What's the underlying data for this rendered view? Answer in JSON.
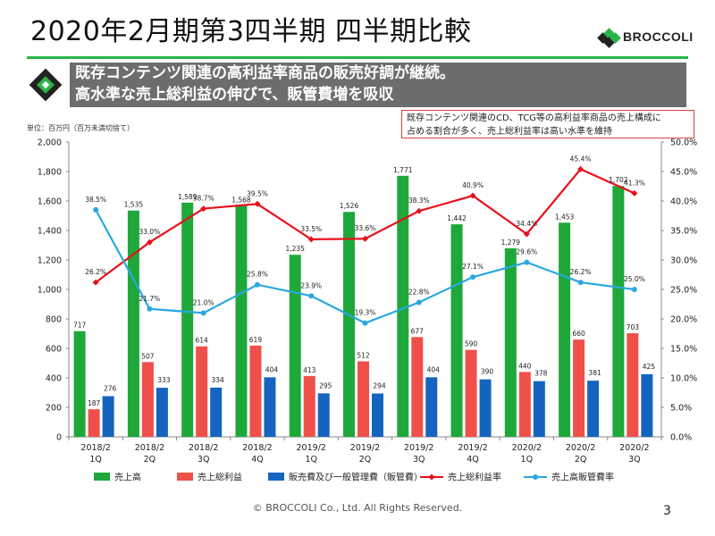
{
  "header": {
    "title": "2020年2月期第3四半期 四半期比較",
    "logo_text": "BROCCOLI"
  },
  "headline": {
    "line1": "既存コンテンツ関連の高利益率商品の販売好調が継続。",
    "line2": "高水準な売上総利益の伸びで、販管費増を吸収"
  },
  "callout": {
    "line1": "既存コンテンツ関連のCD、TCG等の高利益率商品の売上構成に",
    "line2": "占める割合が多く、売上総利益率は高い水準を維持"
  },
  "unit_note": "単位：百万円（百万未満切捨て）",
  "footer": {
    "copyright": "© BROCCOLI Co., Ltd. All Rights Reserved.",
    "page": "3"
  },
  "colors": {
    "sales": "#1fa83a",
    "gross_profit": "#f0504a",
    "sga": "#1565c0",
    "gross_margin": "#e8101c",
    "sga_ratio": "#29a8e0",
    "accent_green": "#2bb34a",
    "headline_bg": "#6d6d6d"
  },
  "chart_data": {
    "type": "bar",
    "categories": [
      [
        "2018/2",
        "1Q"
      ],
      [
        "2018/2",
        "2Q"
      ],
      [
        "2018/2",
        "3Q"
      ],
      [
        "2018/2",
        "4Q"
      ],
      [
        "2019/2",
        "1Q"
      ],
      [
        "2019/2",
        "2Q"
      ],
      [
        "2019/2",
        "3Q"
      ],
      [
        "2019/2",
        "4Q"
      ],
      [
        "2020/2",
        "1Q"
      ],
      [
        "2020/2",
        "2Q"
      ],
      [
        "2020/2",
        "3Q"
      ]
    ],
    "series": [
      {
        "name": "売上高",
        "kind": "bar",
        "axis": "left",
        "values": [
          717,
          1535,
          1589,
          1568,
          1235,
          1526,
          1771,
          1442,
          1279,
          1453,
          1702
        ]
      },
      {
        "name": "売上総利益",
        "kind": "bar",
        "axis": "left",
        "values": [
          187,
          507,
          614,
          619,
          413,
          512,
          677,
          590,
          440,
          660,
          703
        ]
      },
      {
        "name": "販売費及び一般管理費（販管費）",
        "kind": "bar",
        "axis": "left",
        "values": [
          276,
          333,
          334,
          404,
          295,
          294,
          404,
          390,
          378,
          381,
          425
        ]
      },
      {
        "name": "売上総利益率",
        "kind": "line",
        "axis": "right",
        "values": [
          26.2,
          33.0,
          38.7,
          39.5,
          33.5,
          33.6,
          38.3,
          40.9,
          34.4,
          45.4,
          41.3
        ]
      },
      {
        "name": "売上高販管費率",
        "kind": "line",
        "axis": "right",
        "values": [
          38.5,
          21.7,
          21.0,
          25.8,
          23.9,
          19.3,
          22.8,
          27.1,
          29.6,
          26.2,
          25.0
        ]
      }
    ],
    "left_ylim": [
      0,
      2000
    ],
    "left_ticks": [
      "0",
      "200",
      "400",
      "600",
      "800",
      "1,000",
      "1,200",
      "1,400",
      "1,600",
      "1,800",
      "2,000"
    ],
    "right_ylim": [
      0,
      50
    ],
    "right_ticks": [
      "0.0%",
      "5.0%",
      "10.0%",
      "15.0%",
      "20.0%",
      "25.0%",
      "30.0%",
      "35.0%",
      "40.0%",
      "45.0%",
      "50.0%"
    ],
    "grid": false,
    "legend_position": "bottom"
  }
}
